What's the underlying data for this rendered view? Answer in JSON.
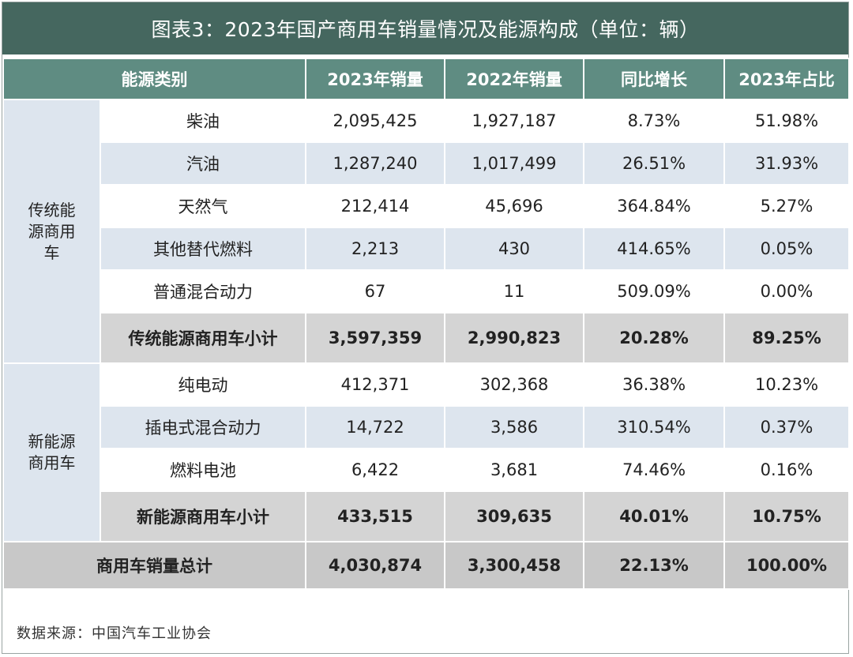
{
  "title": "图表3：2023年国产商用车销量情况及能源构成（单位：辆）",
  "headers": {
    "category": "能源类别",
    "sales_2023": "2023年销量",
    "sales_2022": "2022年销量",
    "yoy": "同比增长",
    "share_2023": "2023年占比"
  },
  "groups": [
    {
      "label_lines": [
        "传统能",
        "源商用",
        "车"
      ],
      "rows": [
        {
          "name": "柴油",
          "sales_2023": "2,095,425",
          "sales_2022": "1,927,187",
          "yoy": "8.73%",
          "share_2023": "51.98%"
        },
        {
          "name": "汽油",
          "sales_2023": "1,287,240",
          "sales_2022": "1,017,499",
          "yoy": "26.51%",
          "share_2023": "31.93%"
        },
        {
          "name": "天然气",
          "sales_2023": "212,414",
          "sales_2022": "45,696",
          "yoy": "364.84%",
          "share_2023": "5.27%"
        },
        {
          "name": "其他替代燃料",
          "sales_2023": "2,213",
          "sales_2022": "430",
          "yoy": "414.65%",
          "share_2023": "0.05%"
        },
        {
          "name": "普通混合动力",
          "sales_2023": "67",
          "sales_2022": "11",
          "yoy": "509.09%",
          "share_2023": "0.00%"
        }
      ],
      "subtotal": {
        "name": "传统能源商用车小计",
        "sales_2023": "3,597,359",
        "sales_2022": "2,990,823",
        "yoy": "20.28%",
        "share_2023": "89.25%"
      }
    },
    {
      "label_lines": [
        "新能源",
        "商用车"
      ],
      "rows": [
        {
          "name": "纯电动",
          "sales_2023": "412,371",
          "sales_2022": "302,368",
          "yoy": "36.38%",
          "share_2023": "10.23%"
        },
        {
          "name": "插电式混合动力",
          "sales_2023": "14,722",
          "sales_2022": "3,586",
          "yoy": "310.54%",
          "share_2023": "0.37%"
        },
        {
          "name": "燃料电池",
          "sales_2023": "6,422",
          "sales_2022": "3,681",
          "yoy": "74.46%",
          "share_2023": "0.16%"
        }
      ],
      "subtotal": {
        "name": "新能源商用车小计",
        "sales_2023": "433,515",
        "sales_2022": "309,635",
        "yoy": "40.01%",
        "share_2023": "10.75%"
      }
    }
  ],
  "total": {
    "name": "商用车销量总计",
    "sales_2023": "4,030,874",
    "sales_2022": "3,300,458",
    "yoy": "22.13%",
    "share_2023": "100.00%"
  },
  "source": "数据来源：中国汽车工业协会",
  "colors": {
    "title_bg": "#45675f",
    "header_bg": "#5f8c82",
    "row_alt": "#dde5ee",
    "subtotal_bg": "#d4d4d4"
  }
}
